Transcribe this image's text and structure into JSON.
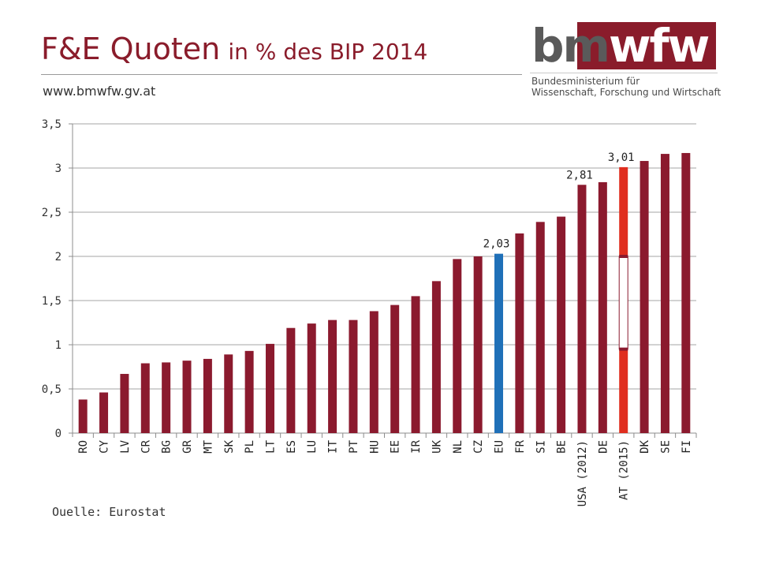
{
  "header": {
    "title_main": "F&E Quoten",
    "title_sub": "in % des BIP 2014",
    "website": "www.bmwfw.gv.at"
  },
  "logo": {
    "word_part1": "bm",
    "word_part2": "wfw",
    "line1": "Bundesministerium für",
    "line2": "Wissenschaft, Forschung und Wirtschaft"
  },
  "colors": {
    "bar": "#8b1a2e",
    "eu": "#1f70b8",
    "at": "#e02e1e",
    "title": "#8a1c2b",
    "logo_blue": "#4d9dd0",
    "logo_grey": "#5a5a5a"
  },
  "chart_data": {
    "type": "bar",
    "title": "F&E Quoten in % des BIP 2014",
    "xlabel": "",
    "ylabel": "",
    "ylim": [
      0,
      3.5
    ],
    "yticks": [
      "0",
      "0,5",
      "1",
      "1,5",
      "2",
      "2,5",
      "3",
      "3,5"
    ],
    "grid": "horizontal",
    "legend": "none",
    "categories": [
      "RO",
      "CY",
      "LV",
      "CR",
      "BG",
      "GR",
      "MT",
      "SK",
      "PL",
      "LT",
      "ES",
      "LU",
      "IT",
      "PT",
      "HU",
      "EE",
      "IR",
      "UK",
      "NL",
      "CZ",
      "EU",
      "FR",
      "SI",
      "BE",
      "USA (2012)",
      "DE",
      "AT (2015)",
      "DK",
      "SE",
      "FI"
    ],
    "values": [
      0.38,
      0.46,
      0.67,
      0.79,
      0.8,
      0.82,
      0.84,
      0.89,
      0.93,
      1.01,
      1.19,
      1.24,
      1.28,
      1.28,
      1.38,
      1.45,
      1.55,
      1.72,
      1.97,
      2.0,
      2.03,
      2.26,
      2.39,
      2.45,
      2.81,
      2.84,
      3.01,
      3.08,
      3.16,
      3.17
    ],
    "data_labels": [
      {
        "category": "EU",
        "text": "2,03"
      },
      {
        "category": "USA (2012)",
        "text": "2,81"
      },
      {
        "category": "AT (2015)",
        "text": "3,01"
      }
    ],
    "highlight": {
      "EU": "eu",
      "AT (2015)": "at"
    }
  },
  "footer": {
    "source": "Ouelle: Eurostat"
  }
}
